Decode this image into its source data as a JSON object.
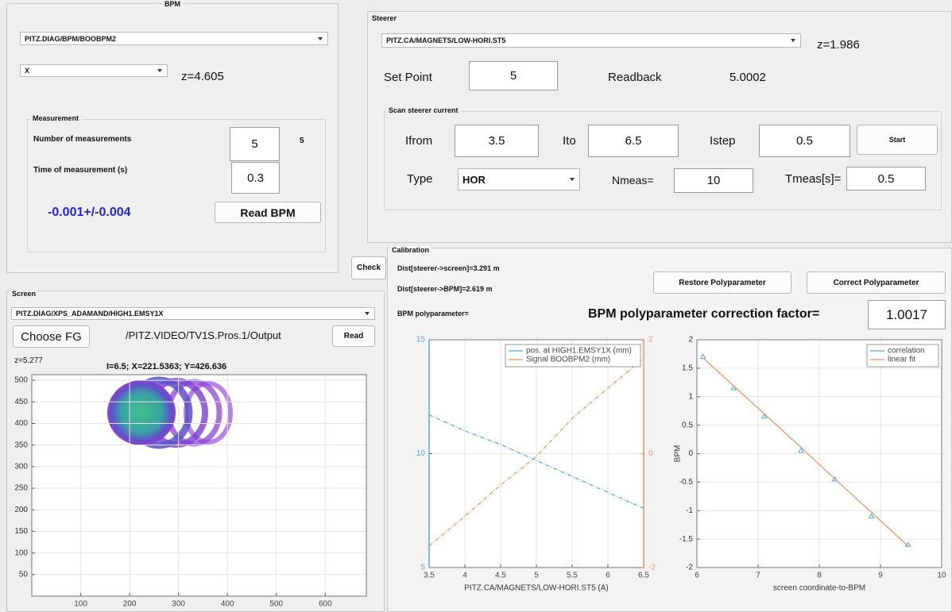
{
  "bpm_panel": {
    "title": "BPM",
    "device": "PITZ.DIAG/BPM/BOOBPM2",
    "plane": "X",
    "z": "z=4.605",
    "measurement": {
      "title": "Measurement",
      "count_label": "Number of measurements",
      "count_input": "5",
      "count_done": "5",
      "time_label": "Time of measurement (s)",
      "time_input": "0.3",
      "result": "-0.001+/-0.004",
      "read_button": "Read BPM"
    }
  },
  "steerer_panel": {
    "title": "Steerer",
    "device": "PITZ.CA/MAGNETS/LOW-HORI.ST5",
    "z": "z=1.986",
    "setpoint_label": "Set Point",
    "setpoint_input": "5",
    "readback_label": "Readback",
    "readback_value": "5.0002",
    "scan": {
      "title": "Scan steerer current",
      "ifrom_label": "Ifrom",
      "ifrom_input": "3.5",
      "ito_label": "Ito",
      "ito_input": "6.5",
      "istep_label": "Istep",
      "istep_input": "0.5",
      "start_button": "Start",
      "type_label": "Type",
      "type_value": "HOR",
      "nmeas_label": "Nmeas=",
      "nmeas_input": "10",
      "tmeas_label": "Tmeas[s]=",
      "tmeas_input": "0.5"
    }
  },
  "check_button": "Check",
  "calibration_panel": {
    "title": "Calibration",
    "dist_screen": "Dist[steerer->screen]=3.291 m",
    "dist_bpm": "Dist[steerer->BPM]=2.619 m",
    "restore_button": "Restore Polyparameter",
    "correct_button": "Correct Polyparameter",
    "polyparameter_label": "BPM polyparameter=",
    "correction_label": "BPM polyparameter correction factor=",
    "correction_value": "1.0017",
    "scan_chart": {
      "type": "line",
      "xlabel": "PITZ.CA/MAGNETS/LOW-HORI.ST5 (A)",
      "x": [
        3.5,
        4,
        4.5,
        5,
        5.5,
        6,
        6.5
      ],
      "xlim": [
        3.5,
        6.5
      ],
      "xticks": [
        3.5,
        4,
        4.5,
        5,
        5.5,
        6,
        6.5
      ],
      "ylim": [
        5,
        15
      ],
      "yticks": [
        5,
        10,
        15
      ],
      "y2lim": [
        -2,
        2
      ],
      "y2ticks": [
        -2,
        0,
        2
      ],
      "grid": true,
      "legend": "upper right",
      "series": [
        {
          "name": "pos. at HIGH1.EMSY1X (mm)",
          "color": "#5aa6dc",
          "values": [
            11.7,
            11.0,
            10.4,
            9.7,
            9.0,
            8.3,
            7.6
          ]
        },
        {
          "name": "Signal BOOBPM2 (mm)",
          "color": "#e8956a",
          "axis": "y2",
          "values": [
            -1.62,
            -1.1,
            -0.55,
            -0.05,
            0.62,
            1.15,
            1.67
          ]
        }
      ]
    },
    "correlation_chart": {
      "type": "scatter",
      "xlabel": "screen coordinate-to-BPM",
      "ylabel": "BPM",
      "x": [
        6.1,
        6.6,
        7.1,
        7.7,
        8.25,
        8.85,
        9.45
      ],
      "xlim": [
        6,
        10
      ],
      "xticks": [
        6,
        7,
        8,
        9,
        10
      ],
      "ylim": [
        -2,
        2
      ],
      "yticks": [
        -2,
        -1.5,
        -1,
        -0.5,
        0,
        0.5,
        1,
        1.5,
        2
      ],
      "grid": true,
      "legend": "upper right",
      "series": [
        {
          "name": "correlation",
          "color": "#5aa6dc",
          "mode": "markers",
          "values": [
            1.7,
            1.15,
            0.65,
            0.05,
            -0.45,
            -1.1,
            -1.6
          ]
        },
        {
          "name": "linear fit",
          "color": "#e8956a",
          "mode": "lines",
          "values": [
            1.68,
            1.19,
            0.7,
            0.11,
            -0.44,
            -1.03,
            -1.62
          ]
        }
      ]
    }
  },
  "screen_panel": {
    "title": "Screen",
    "device": "PITZ.DIAG/XPS_ADAMAND/HIGH1.EMSY1X",
    "choose_button": "Choose FG",
    "video_path": "/PITZ.VIDEO/TV1S.Pros.1/Output",
    "read_button": "Read",
    "z": "z=5.277",
    "status": "I=6.5; X=221.5363; Y=426.636",
    "image_chart": {
      "type": "image",
      "xlim": [
        0,
        684
      ],
      "xticks": [
        100,
        200,
        300,
        400,
        500,
        600
      ],
      "ylim": [
        0,
        513
      ],
      "yticks": [
        50,
        100,
        150,
        200,
        250,
        300,
        350,
        400,
        450,
        500
      ],
      "grid": true
    }
  }
}
